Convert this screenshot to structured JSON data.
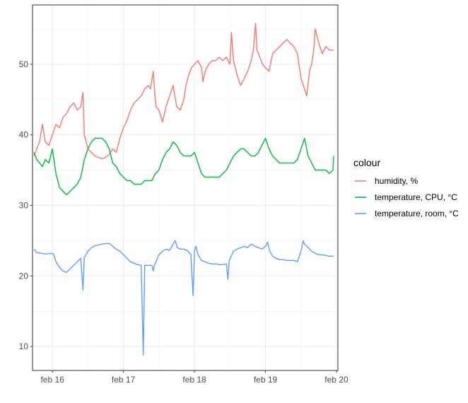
{
  "chart_data": {
    "type": "line",
    "xlabel": "",
    "ylabel": "",
    "x_unit": "days",
    "xlim": [
      15.72,
      20.02
    ],
    "ylim": [
      6.6,
      58.4
    ],
    "x_ticks": [
      {
        "value": 16,
        "label": "feb 16"
      },
      {
        "value": 17,
        "label": "feb 17"
      },
      {
        "value": 18,
        "label": "feb 18"
      },
      {
        "value": 19,
        "label": "feb 19"
      },
      {
        "value": 20,
        "label": "feb 20"
      }
    ],
    "y_ticks": [
      10,
      20,
      30,
      40,
      50
    ],
    "grid": true,
    "legend": {
      "title": "colour",
      "position": "right"
    },
    "series": [
      {
        "name": "humidity, %",
        "color": "#F8766D",
        "points": [
          [
            15.74,
            37.0
          ],
          [
            15.78,
            38.0
          ],
          [
            15.82,
            39.0
          ],
          [
            15.86,
            41.5
          ],
          [
            15.9,
            39.0
          ],
          [
            15.95,
            38.5
          ],
          [
            16.0,
            40.0
          ],
          [
            16.05,
            41.5
          ],
          [
            16.1,
            41.0
          ],
          [
            16.15,
            42.5
          ],
          [
            16.2,
            43.0
          ],
          [
            16.25,
            44.0
          ],
          [
            16.3,
            44.5
          ],
          [
            16.35,
            43.5
          ],
          [
            16.4,
            44.0
          ],
          [
            16.43,
            46.0
          ],
          [
            16.45,
            40.0
          ],
          [
            16.5,
            38.0
          ],
          [
            16.55,
            37.5
          ],
          [
            16.6,
            37.0
          ],
          [
            16.65,
            36.8
          ],
          [
            16.7,
            36.6
          ],
          [
            16.75,
            36.8
          ],
          [
            16.8,
            37.2
          ],
          [
            16.85,
            38.0
          ],
          [
            16.9,
            37.5
          ],
          [
            16.95,
            39.5
          ],
          [
            17.0,
            41.0
          ],
          [
            17.05,
            42.0
          ],
          [
            17.1,
            43.5
          ],
          [
            17.15,
            44.5
          ],
          [
            17.2,
            45.0
          ],
          [
            17.25,
            45.5
          ],
          [
            17.3,
            46.5
          ],
          [
            17.35,
            47.0
          ],
          [
            17.38,
            46.5
          ],
          [
            17.42,
            49.0
          ],
          [
            17.44,
            46.0
          ],
          [
            17.46,
            44.0
          ],
          [
            17.5,
            43.5
          ],
          [
            17.55,
            41.8
          ],
          [
            17.6,
            44.0
          ],
          [
            17.65,
            45.5
          ],
          [
            17.7,
            47.0
          ],
          [
            17.75,
            44.0
          ],
          [
            17.8,
            43.5
          ],
          [
            17.85,
            45.0
          ],
          [
            17.88,
            47.0
          ],
          [
            17.92,
            48.5
          ],
          [
            17.96,
            49.5
          ],
          [
            18.0,
            50.0
          ],
          [
            18.05,
            50.5
          ],
          [
            18.1,
            49.5
          ],
          [
            18.12,
            47.5
          ],
          [
            18.15,
            49.0
          ],
          [
            18.2,
            50.0
          ],
          [
            18.25,
            50.5
          ],
          [
            18.3,
            50.5
          ],
          [
            18.35,
            51.0
          ],
          [
            18.4,
            50.5
          ],
          [
            18.45,
            51.0
          ],
          [
            18.5,
            50.0
          ],
          [
            18.52,
            54.5
          ],
          [
            18.55,
            50.5
          ],
          [
            18.6,
            48.5
          ],
          [
            18.65,
            47.0
          ],
          [
            18.7,
            48.0
          ],
          [
            18.75,
            49.0
          ],
          [
            18.8,
            50.5
          ],
          [
            18.83,
            52.0
          ],
          [
            18.86,
            55.8
          ],
          [
            18.88,
            52.0
          ],
          [
            18.92,
            51.0
          ],
          [
            18.96,
            50.0
          ],
          [
            19.0,
            49.5
          ],
          [
            19.05,
            49.0
          ],
          [
            19.1,
            51.5
          ],
          [
            19.15,
            52.0
          ],
          [
            19.2,
            52.5
          ],
          [
            19.25,
            53.0
          ],
          [
            19.3,
            53.5
          ],
          [
            19.35,
            53.0
          ],
          [
            19.4,
            52.5
          ],
          [
            19.45,
            51.5
          ],
          [
            19.5,
            48.0
          ],
          [
            19.55,
            46.5
          ],
          [
            19.58,
            45.5
          ],
          [
            19.62,
            49.0
          ],
          [
            19.65,
            50.0
          ],
          [
            19.68,
            52.0
          ],
          [
            19.7,
            55.0
          ],
          [
            19.75,
            53.0
          ],
          [
            19.8,
            51.5
          ],
          [
            19.85,
            52.5
          ],
          [
            19.9,
            52.0
          ],
          [
            19.96,
            52.0
          ]
        ]
      },
      {
        "name": "temperature, CPU, °C",
        "color": "#00BA38",
        "points": [
          [
            15.74,
            37.5
          ],
          [
            15.78,
            36.5
          ],
          [
            15.82,
            36.0
          ],
          [
            15.86,
            35.5
          ],
          [
            15.9,
            36.5
          ],
          [
            15.95,
            36.0
          ],
          [
            16.0,
            38.0
          ],
          [
            16.05,
            34.5
          ],
          [
            16.1,
            32.5
          ],
          [
            16.15,
            32.0
          ],
          [
            16.2,
            31.5
          ],
          [
            16.25,
            32.0
          ],
          [
            16.3,
            32.5
          ],
          [
            16.35,
            33.0
          ],
          [
            16.4,
            34.0
          ],
          [
            16.45,
            36.5
          ],
          [
            16.5,
            38.0
          ],
          [
            16.55,
            39.0
          ],
          [
            16.6,
            39.5
          ],
          [
            16.65,
            39.5
          ],
          [
            16.7,
            39.5
          ],
          [
            16.75,
            39.0
          ],
          [
            16.8,
            38.0
          ],
          [
            16.85,
            36.0
          ],
          [
            16.9,
            35.5
          ],
          [
            16.95,
            34.5
          ],
          [
            17.0,
            34.0
          ],
          [
            17.05,
            33.5
          ],
          [
            17.1,
            33.5
          ],
          [
            17.15,
            33.0
          ],
          [
            17.2,
            33.0
          ],
          [
            17.25,
            33.0
          ],
          [
            17.3,
            33.5
          ],
          [
            17.35,
            33.5
          ],
          [
            17.4,
            33.5
          ],
          [
            17.45,
            34.5
          ],
          [
            17.5,
            35.0
          ],
          [
            17.55,
            36.5
          ],
          [
            17.6,
            37.5
          ],
          [
            17.65,
            38.0
          ],
          [
            17.7,
            39.0
          ],
          [
            17.75,
            38.5
          ],
          [
            17.8,
            37.5
          ],
          [
            17.85,
            37.0
          ],
          [
            17.9,
            37.0
          ],
          [
            17.95,
            37.0
          ],
          [
            18.0,
            37.5
          ],
          [
            18.05,
            36.0
          ],
          [
            18.1,
            34.5
          ],
          [
            18.15,
            34.0
          ],
          [
            18.2,
            34.0
          ],
          [
            18.25,
            34.0
          ],
          [
            18.3,
            34.0
          ],
          [
            18.35,
            34.0
          ],
          [
            18.4,
            34.5
          ],
          [
            18.45,
            35.0
          ],
          [
            18.5,
            36.0
          ],
          [
            18.55,
            37.0
          ],
          [
            18.6,
            37.5
          ],
          [
            18.65,
            38.0
          ],
          [
            18.7,
            38.0
          ],
          [
            18.75,
            37.5
          ],
          [
            18.8,
            37.0
          ],
          [
            18.85,
            37.0
          ],
          [
            18.9,
            37.5
          ],
          [
            18.95,
            38.5
          ],
          [
            19.0,
            39.5
          ],
          [
            19.05,
            38.0
          ],
          [
            19.1,
            37.0
          ],
          [
            19.15,
            36.5
          ],
          [
            19.2,
            36.0
          ],
          [
            19.25,
            36.0
          ],
          [
            19.3,
            36.0
          ],
          [
            19.35,
            36.0
          ],
          [
            19.4,
            36.0
          ],
          [
            19.45,
            36.5
          ],
          [
            19.5,
            38.0
          ],
          [
            19.55,
            39.5
          ],
          [
            19.6,
            37.0
          ],
          [
            19.65,
            36.0
          ],
          [
            19.7,
            35.0
          ],
          [
            19.75,
            35.0
          ],
          [
            19.8,
            35.0
          ],
          [
            19.85,
            35.0
          ],
          [
            19.9,
            34.5
          ],
          [
            19.95,
            35.0
          ],
          [
            19.96,
            37.0
          ]
        ]
      },
      {
        "name": "temperature, room, °C",
        "color": "#619CFF",
        "points": [
          [
            15.74,
            23.8
          ],
          [
            15.78,
            23.3
          ],
          [
            15.85,
            23.2
          ],
          [
            15.9,
            23.1
          ],
          [
            16.0,
            23.2
          ],
          [
            16.02,
            23.0
          ],
          [
            16.05,
            22.0
          ],
          [
            16.1,
            21.2
          ],
          [
            16.15,
            20.7
          ],
          [
            16.2,
            20.5
          ],
          [
            16.25,
            21.0
          ],
          [
            16.3,
            21.5
          ],
          [
            16.35,
            22.0
          ],
          [
            16.4,
            22.5
          ],
          [
            16.43,
            18.0
          ],
          [
            16.45,
            22.6
          ],
          [
            16.5,
            23.5
          ],
          [
            16.55,
            24.0
          ],
          [
            16.6,
            24.3
          ],
          [
            16.65,
            24.4
          ],
          [
            16.7,
            24.5
          ],
          [
            16.75,
            24.6
          ],
          [
            16.8,
            24.6
          ],
          [
            16.85,
            24.2
          ],
          [
            16.9,
            23.8
          ],
          [
            16.95,
            23.5
          ],
          [
            17.0,
            23.0
          ],
          [
            17.05,
            22.5
          ],
          [
            17.1,
            22.0
          ],
          [
            17.15,
            21.8
          ],
          [
            17.2,
            21.6
          ],
          [
            17.25,
            21.5
          ],
          [
            17.28,
            8.8
          ],
          [
            17.3,
            21.5
          ],
          [
            17.35,
            21.5
          ],
          [
            17.4,
            21.5
          ],
          [
            17.42,
            20.7
          ],
          [
            17.44,
            21.6
          ],
          [
            17.5,
            23.0
          ],
          [
            17.55,
            23.5
          ],
          [
            17.6,
            23.8
          ],
          [
            17.65,
            23.6
          ],
          [
            17.7,
            24.5
          ],
          [
            17.73,
            25.0
          ],
          [
            17.76,
            24.0
          ],
          [
            17.8,
            23.8
          ],
          [
            17.85,
            23.8
          ],
          [
            17.9,
            23.6
          ],
          [
            17.95,
            23.0
          ],
          [
            17.98,
            17.2
          ],
          [
            18.0,
            23.5
          ],
          [
            18.02,
            24.2
          ],
          [
            18.05,
            23.0
          ],
          [
            18.1,
            22.2
          ],
          [
            18.15,
            22.0
          ],
          [
            18.2,
            21.8
          ],
          [
            18.25,
            21.7
          ],
          [
            18.3,
            21.7
          ],
          [
            18.35,
            21.6
          ],
          [
            18.4,
            21.6
          ],
          [
            18.45,
            21.7
          ],
          [
            18.47,
            19.5
          ],
          [
            18.49,
            22.2
          ],
          [
            18.55,
            23.5
          ],
          [
            18.6,
            23.8
          ],
          [
            18.65,
            24.0
          ],
          [
            18.7,
            24.2
          ],
          [
            18.75,
            24.0
          ],
          [
            18.8,
            24.5
          ],
          [
            18.85,
            24.2
          ],
          [
            18.9,
            24.0
          ],
          [
            18.95,
            23.8
          ],
          [
            19.0,
            24.2
          ],
          [
            19.03,
            24.8
          ],
          [
            19.06,
            23.5
          ],
          [
            19.1,
            22.8
          ],
          [
            19.15,
            22.5
          ],
          [
            19.2,
            22.3
          ],
          [
            19.25,
            22.3
          ],
          [
            19.3,
            22.2
          ],
          [
            19.35,
            22.2
          ],
          [
            19.4,
            22.2
          ],
          [
            19.45,
            22.0
          ],
          [
            19.5,
            23.5
          ],
          [
            19.53,
            25.0
          ],
          [
            19.55,
            24.5
          ],
          [
            19.6,
            24.0
          ],
          [
            19.65,
            23.5
          ],
          [
            19.7,
            23.2
          ],
          [
            19.75,
            23.0
          ],
          [
            19.8,
            23.0
          ],
          [
            19.85,
            22.9
          ],
          [
            19.9,
            22.8
          ],
          [
            19.96,
            22.8
          ]
        ]
      }
    ]
  }
}
